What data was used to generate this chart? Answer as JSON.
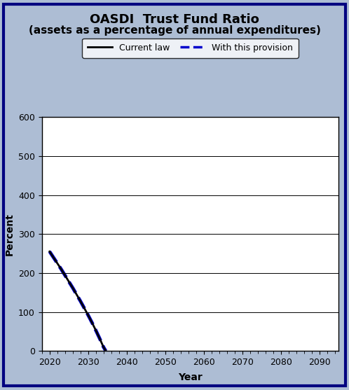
{
  "title_line1": "OASDI  Trust Fund Ratio",
  "title_line2": "(assets as a percentage of annual expenditures)",
  "xlabel": "Year",
  "ylabel": "Percent",
  "background_color": "#adbdd4",
  "plot_bg_color": "#ffffff",
  "outer_border_color": "#000080",
  "current_law": {
    "x": [
      2020,
      2021,
      2022,
      2023,
      2024,
      2025,
      2026,
      2027,
      2028,
      2029,
      2030,
      2031,
      2032,
      2033,
      2034,
      2034.6
    ],
    "y": [
      255,
      240,
      225,
      210,
      194,
      178,
      162,
      145,
      128,
      110,
      92,
      73,
      53,
      32,
      10,
      0
    ],
    "color": "#000000",
    "linewidth": 2.0,
    "label": "Current law"
  },
  "provision": {
    "x": [
      2020,
      2021,
      2022,
      2023,
      2024,
      2025,
      2026,
      2027,
      2028,
      2029,
      2030,
      2031,
      2032,
      2033,
      2034,
      2034.6
    ],
    "y": [
      255,
      240,
      225,
      210,
      194,
      178,
      162,
      145,
      128,
      110,
      92,
      73,
      53,
      32,
      10,
      0
    ],
    "color": "#0000cc",
    "linewidth": 3.5,
    "linestyle": "--",
    "label": "With this provision"
  },
  "xlim": [
    2018,
    2095
  ],
  "ylim": [
    0,
    600
  ],
  "xticks": [
    2020,
    2030,
    2040,
    2050,
    2060,
    2070,
    2080,
    2090
  ],
  "yticks": [
    0,
    100,
    200,
    300,
    400,
    500,
    600
  ],
  "legend_box_color": "#ffffff",
  "legend_edge_color": "#000000",
  "grid_color": "#000000",
  "title_fontsize": 13,
  "subtitle_fontsize": 11,
  "axis_label_fontsize": 10,
  "tick_fontsize": 9,
  "legend_fontsize": 9
}
